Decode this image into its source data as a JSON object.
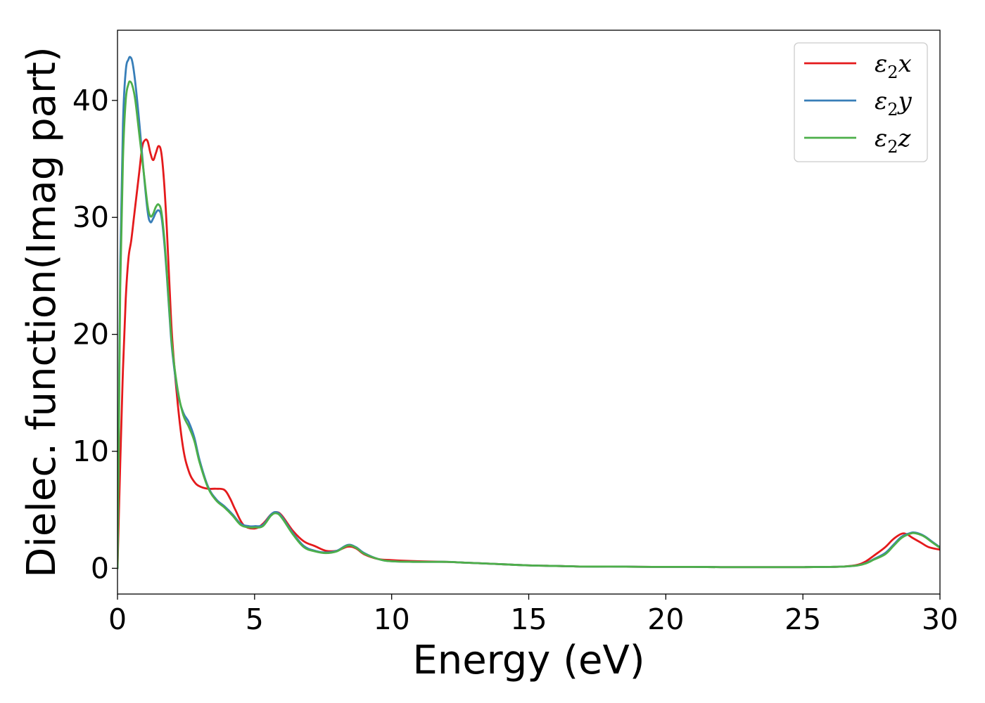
{
  "chart_data": {
    "type": "line",
    "title": "",
    "xlabel": "Energy (eV)",
    "ylabel": "Dielec. function(Imag part)",
    "xlim": [
      0,
      30
    ],
    "ylim": [
      -2.2,
      46
    ],
    "xticks": [
      0,
      5,
      10,
      15,
      20,
      25,
      30
    ],
    "yticks": [
      0,
      10,
      20,
      30,
      40
    ],
    "grid": false,
    "legend_placement": "top-right",
    "series": [
      {
        "name": "ε2x",
        "name_base": "ε",
        "name_sub": "2",
        "name_var": "x",
        "color": "#e41a1c",
        "x": [
          0,
          0.1,
          0.2,
          0.3,
          0.4,
          0.5,
          0.6,
          0.7,
          0.8,
          0.9,
          1.0,
          1.1,
          1.2,
          1.3,
          1.4,
          1.5,
          1.6,
          1.7,
          1.8,
          1.9,
          2.0,
          2.2,
          2.4,
          2.6,
          2.8,
          3.0,
          3.3,
          3.6,
          3.9,
          4.1,
          4.3,
          4.6,
          5.0,
          5.3,
          5.6,
          5.8,
          6.0,
          6.4,
          6.8,
          7.2,
          7.6,
          8.0,
          8.4,
          8.7,
          9.0,
          9.5,
          10.0,
          11.0,
          12.0,
          12.5,
          13.0,
          14.0,
          15.0,
          16.0,
          17.0,
          18.0,
          19.0,
          20.0,
          21.0,
          22.0,
          23.0,
          24.0,
          25.0,
          26.0,
          26.5,
          27.0,
          27.3,
          27.6,
          28.0,
          28.3,
          28.6,
          28.8,
          29.0,
          29.3,
          29.6,
          30.0
        ],
        "y": [
          0,
          9,
          17,
          23,
          26.5,
          28,
          30,
          32,
          34,
          36,
          36.6,
          36.5,
          35.5,
          34.9,
          35.5,
          36.1,
          35.5,
          33,
          29,
          24,
          19.5,
          14,
          10.2,
          8.3,
          7.4,
          7.0,
          6.8,
          6.8,
          6.7,
          6.0,
          5.0,
          3.7,
          3.4,
          3.8,
          4.6,
          4.8,
          4.5,
          3.2,
          2.3,
          1.9,
          1.5,
          1.5,
          1.85,
          1.7,
          1.2,
          0.8,
          0.7,
          0.6,
          0.55,
          0.5,
          0.45,
          0.35,
          0.25,
          0.2,
          0.15,
          0.15,
          0.13,
          0.12,
          0.12,
          0.1,
          0.1,
          0.1,
          0.1,
          0.12,
          0.15,
          0.3,
          0.6,
          1.1,
          1.8,
          2.5,
          2.95,
          2.9,
          2.6,
          2.2,
          1.8,
          1.6
        ]
      },
      {
        "name": "ε2y",
        "name_base": "ε",
        "name_sub": "2",
        "name_var": "y",
        "color": "#377eb8",
        "x": [
          0,
          0.05,
          0.1,
          0.2,
          0.3,
          0.4,
          0.47,
          0.55,
          0.65,
          0.8,
          0.95,
          1.1,
          1.2,
          1.3,
          1.4,
          1.5,
          1.6,
          1.7,
          1.8,
          1.9,
          2.0,
          2.2,
          2.4,
          2.6,
          2.8,
          3.0,
          3.3,
          3.6,
          3.9,
          4.2,
          4.5,
          4.8,
          5.0,
          5.3,
          5.6,
          5.8,
          6.0,
          6.4,
          6.8,
          7.2,
          7.6,
          8.0,
          8.4,
          8.7,
          9.0,
          9.5,
          10.0,
          11.0,
          12.0,
          12.5,
          13.0,
          14.0,
          15.0,
          16.0,
          17.0,
          18.0,
          19.0,
          20.0,
          21.0,
          22.0,
          23.0,
          24.0,
          25.0,
          26.0,
          26.5,
          27.0,
          27.3,
          27.6,
          28.0,
          28.3,
          28.6,
          28.9,
          29.1,
          29.4,
          29.7,
          30.0
        ],
        "y": [
          0,
          12,
          26,
          38,
          42.5,
          43.5,
          43.7,
          43.2,
          41.5,
          38,
          34,
          30.5,
          29.6,
          29.9,
          30.4,
          30.6,
          30.1,
          28,
          25,
          21.5,
          18.5,
          15,
          13.3,
          12.5,
          11.2,
          9.2,
          7.0,
          5.9,
          5.3,
          4.6,
          3.8,
          3.6,
          3.6,
          3.7,
          4.6,
          4.8,
          4.4,
          3.0,
          1.9,
          1.5,
          1.35,
          1.5,
          2.0,
          1.8,
          1.3,
          0.8,
          0.6,
          0.55,
          0.55,
          0.5,
          0.45,
          0.35,
          0.25,
          0.2,
          0.15,
          0.15,
          0.13,
          0.12,
          0.12,
          0.1,
          0.1,
          0.1,
          0.1,
          0.12,
          0.15,
          0.25,
          0.45,
          0.8,
          1.3,
          2.0,
          2.7,
          3.0,
          3.05,
          2.8,
          2.3,
          1.8
        ]
      },
      {
        "name": "ε2z",
        "name_base": "ε",
        "name_sub": "2",
        "name_var": "z",
        "color": "#4daf4a",
        "x": [
          0,
          0.05,
          0.1,
          0.2,
          0.3,
          0.4,
          0.47,
          0.55,
          0.65,
          0.8,
          0.95,
          1.1,
          1.2,
          1.3,
          1.4,
          1.5,
          1.6,
          1.7,
          1.8,
          1.9,
          2.0,
          2.2,
          2.4,
          2.6,
          2.8,
          3.0,
          3.3,
          3.6,
          3.9,
          4.2,
          4.5,
          4.8,
          5.0,
          5.3,
          5.6,
          5.8,
          6.0,
          6.4,
          6.8,
          7.2,
          7.6,
          8.0,
          8.4,
          8.7,
          9.0,
          9.5,
          10.0,
          11.0,
          12.0,
          12.5,
          13.0,
          14.0,
          15.0,
          16.0,
          17.0,
          18.0,
          19.0,
          20.0,
          21.0,
          22.0,
          23.0,
          24.0,
          25.0,
          26.0,
          26.5,
          27.0,
          27.3,
          27.6,
          28.0,
          28.3,
          28.6,
          28.9,
          29.1,
          29.4,
          29.7,
          30.0
        ],
        "y": [
          0,
          11,
          24,
          35,
          40,
          41.4,
          41.6,
          41.2,
          40,
          37,
          34,
          31,
          30.1,
          30.3,
          30.9,
          31.1,
          30.5,
          28.4,
          25.3,
          21.8,
          18.8,
          15.2,
          13.1,
          12.1,
          10.9,
          9.0,
          6.9,
          5.8,
          5.2,
          4.5,
          3.7,
          3.5,
          3.5,
          3.6,
          4.5,
          4.7,
          4.3,
          2.9,
          1.8,
          1.45,
          1.3,
          1.45,
          1.95,
          1.75,
          1.25,
          0.8,
          0.6,
          0.55,
          0.55,
          0.5,
          0.45,
          0.35,
          0.25,
          0.2,
          0.15,
          0.15,
          0.13,
          0.12,
          0.12,
          0.1,
          0.1,
          0.1,
          0.1,
          0.12,
          0.15,
          0.25,
          0.42,
          0.75,
          1.2,
          1.9,
          2.6,
          2.95,
          3.0,
          2.75,
          2.25,
          1.75
        ]
      }
    ]
  }
}
